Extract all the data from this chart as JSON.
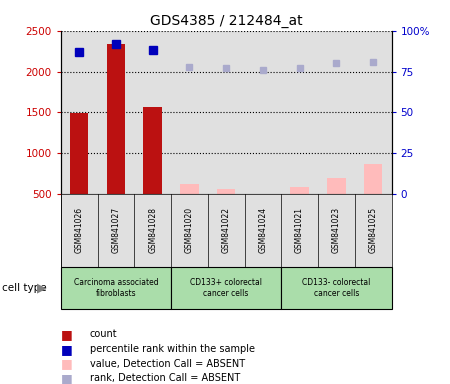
{
  "title": "GDS4385 / 212484_at",
  "samples": [
    "GSM841026",
    "GSM841027",
    "GSM841028",
    "GSM841020",
    "GSM841022",
    "GSM841024",
    "GSM841021",
    "GSM841023",
    "GSM841025"
  ],
  "count_values": [
    1490,
    2340,
    1570,
    null,
    null,
    null,
    null,
    null,
    null
  ],
  "count_absent_values": [
    null,
    null,
    null,
    620,
    560,
    490,
    580,
    700,
    870
  ],
  "rank_present_values": [
    87,
    92,
    88,
    null,
    null,
    null,
    null,
    null,
    null
  ],
  "rank_absent_values": [
    null,
    null,
    null,
    78,
    77,
    76,
    77,
    80,
    81
  ],
  "cell_types": [
    {
      "label": "Carcinoma associated\nfibroblasts",
      "start": 0,
      "end": 3
    },
    {
      "label": "CD133+ colorectal\ncancer cells",
      "start": 3,
      "end": 6
    },
    {
      "label": "CD133- colorectal\ncancer cells",
      "start": 6,
      "end": 9
    }
  ],
  "ylim_left": [
    500,
    2500
  ],
  "ylim_right": [
    0,
    100
  ],
  "bar_width": 0.5,
  "count_color": "#bb1111",
  "count_absent_color": "#ffbbbb",
  "rank_present_color": "#0000bb",
  "rank_absent_color": "#aaaacc",
  "bg_color": "#e0e0e0",
  "cell_type_color": "#aaddaa",
  "label_color_left": "#cc0000",
  "label_color_right": "#0000cc",
  "yticks_left": [
    500,
    1000,
    1500,
    2000,
    2500
  ],
  "yticks_right": [
    0,
    25,
    50,
    75,
    100
  ],
  "ytick_labels_right": [
    "0",
    "25",
    "50",
    "75",
    "100%"
  ],
  "legend_items": [
    {
      "color": "#bb1111",
      "label": "count"
    },
    {
      "color": "#0000bb",
      "label": "percentile rank within the sample"
    },
    {
      "color": "#ffbbbb",
      "label": "value, Detection Call = ABSENT"
    },
    {
      "color": "#aaaacc",
      "label": "rank, Detection Call = ABSENT"
    }
  ]
}
